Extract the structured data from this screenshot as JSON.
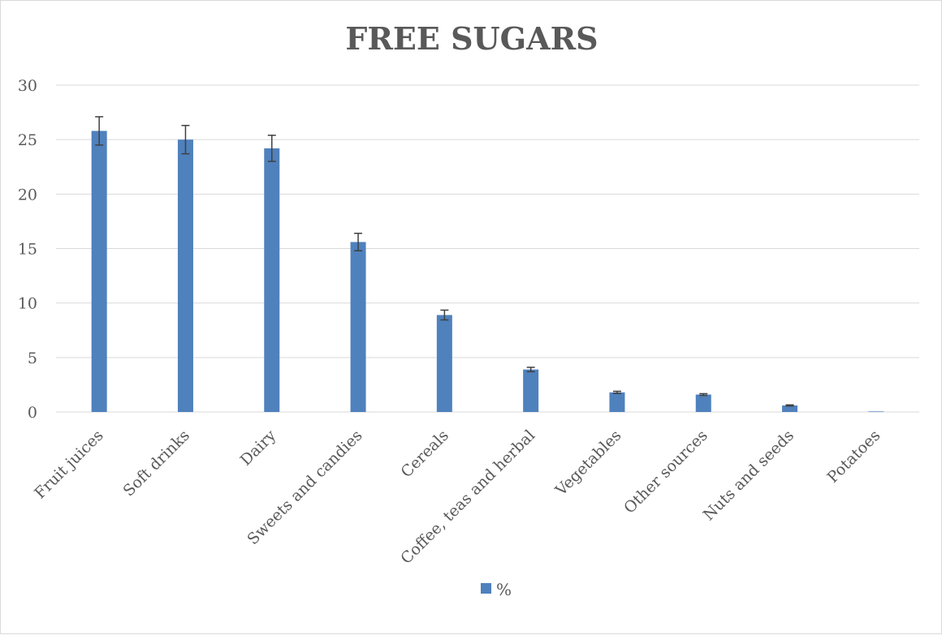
{
  "chart_data": {
    "type": "bar",
    "title": "FREE SUGARS",
    "xlabel": "",
    "ylabel": "",
    "categories": [
      "Fruit juices",
      "Soft drinks",
      "Dairy",
      "Sweets and candies",
      "Cereals",
      "Coffee, teas and herbal",
      "Vegetables",
      "Other  sources",
      "Nuts and seeds",
      "Potatoes"
    ],
    "series": [
      {
        "name": "%",
        "color": "#4f81bd",
        "values": [
          25.8,
          25.0,
          24.2,
          15.6,
          8.9,
          3.9,
          1.8,
          1.6,
          0.6,
          0.05
        ],
        "error": [
          1.3,
          1.3,
          1.2,
          0.8,
          0.45,
          0.2,
          0.1,
          0.08,
          0.05,
          0.0
        ]
      }
    ],
    "ylim": [
      0,
      30
    ],
    "yticks": [
      "0",
      "5",
      "10",
      "15",
      "20",
      "25",
      "30"
    ],
    "grid": true,
    "legend_position": "bottom"
  }
}
